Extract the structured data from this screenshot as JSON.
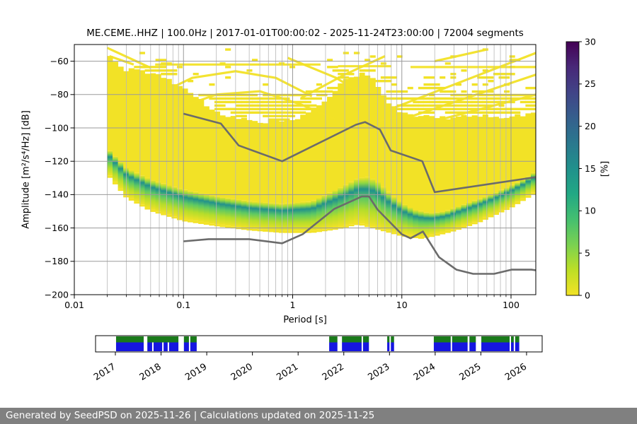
{
  "title": "ME.CEME..HHZ | 100.0Hz | 2017-01-01T00:00:02 - 2025-11-24T23:00:00 | 72004 segments",
  "footer": "Generated by SeedPSD on 2025-11-26 | Calculations updated on 2025-11-25",
  "axes": {
    "xlabel": "Period [s]",
    "ylabel": "Amplitude [m²/s⁴/Hz] [dB]",
    "colorbar_label": "[%]"
  },
  "chart_data": {
    "type": "heatmap",
    "subtype": "ppsd-probability",
    "title": "ME.CEME..HHZ | 100.0Hz | 2017-01-01T00:00:02 - 2025-11-24T23:00:00 | 72004 segments",
    "xlabel": "Period [s]",
    "ylabel": "Amplitude [m²/s⁴/Hz] [dB]",
    "xscale": "log",
    "xlim": [
      0.01,
      170
    ],
    "ylim": [
      -200,
      -50
    ],
    "grid": true,
    "x_ticks": [
      {
        "v": 0.01,
        "label": "0.01"
      },
      {
        "v": 0.1,
        "label": "0.1"
      },
      {
        "v": 1,
        "label": "1"
      },
      {
        "v": 10,
        "label": "10"
      },
      {
        "v": 100,
        "label": "100"
      }
    ],
    "y_ticks": [
      {
        "v": -60,
        "label": "−60"
      },
      {
        "v": -80,
        "label": "−80"
      },
      {
        "v": -100,
        "label": "−100"
      },
      {
        "v": -120,
        "label": "−120"
      },
      {
        "v": -140,
        "label": "−140"
      },
      {
        "v": -160,
        "label": "−160"
      },
      {
        "v": -180,
        "label": "−180"
      },
      {
        "v": -200,
        "label": "−200"
      }
    ],
    "colorbar": {
      "label": "[%]",
      "range": [
        0,
        30
      ],
      "ticks": [
        0,
        5,
        10,
        15,
        20,
        25,
        30
      ],
      "colors_bottom_to_top": [
        "#f2e226",
        "#bddf26",
        "#7ad151",
        "#44bf70",
        "#22a884",
        "#21918c",
        "#2a788e",
        "#355f8d",
        "#414487",
        "#482878",
        "#440154"
      ]
    },
    "colors": {
      "base_yellow": "#f2e226",
      "grid_major": "#9a9a9a",
      "grid_minor": "#b8b8b8",
      "noise_model_line": "#6b6b6b",
      "band_gradient_stops": [
        {
          "t": 0.0,
          "c": "#f2e226"
        },
        {
          "t": 0.12,
          "c": "#90d743"
        },
        {
          "t": 0.25,
          "c": "#21918c"
        },
        {
          "t": 0.45,
          "c": "#5ec962"
        },
        {
          "t": 0.7,
          "c": "#b5dd2b"
        },
        {
          "t": 1.0,
          "c": "#f2e226"
        }
      ]
    },
    "heatmap": {
      "bins": 80,
      "period_range": [
        0.02,
        170
      ],
      "seed": 1234,
      "upper_solid": [
        [
          0.02,
          -57
        ],
        [
          0.024,
          -60
        ],
        [
          0.03,
          -65
        ],
        [
          0.05,
          -67
        ],
        [
          0.08,
          -72
        ],
        [
          0.12,
          -80
        ],
        [
          0.2,
          -90
        ],
        [
          0.3,
          -94
        ],
        [
          0.5,
          -96
        ],
        [
          0.9,
          -96
        ],
        [
          1.5,
          -90
        ],
        [
          2.2,
          -80
        ],
        [
          3,
          -72
        ],
        [
          4,
          -68
        ],
        [
          5,
          -68
        ],
        [
          6,
          -75
        ],
        [
          7.5,
          -85
        ],
        [
          10,
          -91
        ],
        [
          15,
          -93
        ],
        [
          25,
          -94
        ],
        [
          40,
          -92
        ],
        [
          70,
          -93
        ],
        [
          120,
          -93
        ],
        [
          170,
          -91
        ]
      ],
      "band_top": [
        [
          0.02,
          -112
        ],
        [
          0.03,
          -124
        ],
        [
          0.05,
          -131
        ],
        [
          0.1,
          -137
        ],
        [
          0.2,
          -141
        ],
        [
          0.4,
          -144
        ],
        [
          0.8,
          -145.5
        ],
        [
          1.5,
          -144
        ],
        [
          2.5,
          -137
        ],
        [
          4,
          -130
        ],
        [
          5,
          -129.5
        ],
        [
          6,
          -132
        ],
        [
          8,
          -140
        ],
        [
          10,
          -145
        ],
        [
          13,
          -149
        ],
        [
          18,
          -151
        ],
        [
          25,
          -150
        ],
        [
          40,
          -145
        ],
        [
          60,
          -141
        ],
        [
          90,
          -136
        ],
        [
          130,
          -131
        ],
        [
          170,
          -126
        ]
      ],
      "bottom": [
        [
          0.02,
          -128
        ],
        [
          0.03,
          -142
        ],
        [
          0.05,
          -150
        ],
        [
          0.1,
          -156
        ],
        [
          0.2,
          -159
        ],
        [
          0.4,
          -161.5
        ],
        [
          0.8,
          -163
        ],
        [
          1.5,
          -163
        ],
        [
          2.5,
          -161
        ],
        [
          4,
          -158
        ],
        [
          6,
          -161
        ],
        [
          10,
          -165
        ],
        [
          15,
          -166.5
        ],
        [
          20,
          -165
        ],
        [
          30,
          -162
        ],
        [
          50,
          -157
        ],
        [
          100,
          -148
        ],
        [
          170,
          -139
        ]
      ],
      "streaks": [
        [
          [
            0.02,
            -52
          ],
          [
            0.05,
            -64
          ]
        ],
        [
          [
            0.021,
            -57
          ],
          [
            0.035,
            -62
          ]
        ],
        [
          [
            0.055,
            -62
          ],
          [
            1.8,
            -62
          ]
        ],
        [
          [
            2.6,
            -63
          ],
          [
            8,
            -63
          ]
        ],
        [
          [
            12,
            -63.5
          ],
          [
            170,
            -63.5
          ]
        ],
        [
          [
            0.05,
            -82
          ],
          [
            0.12,
            -70
          ],
          [
            0.3,
            -66
          ],
          [
            0.7,
            -70
          ],
          [
            1.5,
            -81
          ]
        ],
        [
          [
            0.06,
            -92
          ],
          [
            0.2,
            -80
          ],
          [
            0.5,
            -78
          ],
          [
            1.2,
            -86
          ],
          [
            2.5,
            -95
          ]
        ],
        [
          [
            0.9,
            -58
          ],
          [
            2.5,
            -70
          ],
          [
            5,
            -82
          ]
        ],
        [
          [
            1.2,
            -82
          ],
          [
            3,
            -68
          ],
          [
            7,
            -57
          ]
        ],
        [
          [
            7,
            -90
          ],
          [
            170,
            -55
          ]
        ],
        [
          [
            10,
            -95
          ],
          [
            170,
            -68
          ]
        ],
        [
          [
            15,
            -98
          ],
          [
            170,
            -80
          ]
        ],
        [
          [
            20,
            -60
          ],
          [
            60,
            -53
          ]
        ],
        [
          [
            3,
            -100
          ],
          [
            10,
            -93
          ]
        ]
      ]
    },
    "noise_models": {
      "nhnm": [
        [
          0.1,
          -91.5
        ],
        [
          0.22,
          -97.4
        ],
        [
          0.32,
          -110.5
        ],
        [
          0.8,
          -120.0
        ],
        [
          3.8,
          -98.1
        ],
        [
          4.6,
          -96.5
        ],
        [
          6.3,
          -101.0
        ],
        [
          7.9,
          -113.5
        ],
        [
          15.4,
          -120.0
        ],
        [
          20.0,
          -138.5
        ],
        [
          170.0,
          -129.5
        ]
      ],
      "nlnm": [
        [
          0.1,
          -168.0
        ],
        [
          0.17,
          -166.7
        ],
        [
          0.4,
          -166.7
        ],
        [
          0.8,
          -169.2
        ],
        [
          1.24,
          -163.7
        ],
        [
          2.4,
          -148.6
        ],
        [
          4.3,
          -141.1
        ],
        [
          5.0,
          -141.1
        ],
        [
          6.0,
          -149.0
        ],
        [
          10.0,
          -163.8
        ],
        [
          12.0,
          -166.2
        ],
        [
          15.6,
          -162.1
        ],
        [
          21.9,
          -177.5
        ],
        [
          31.6,
          -185.0
        ],
        [
          45.0,
          -187.5
        ],
        [
          70.0,
          -187.5
        ],
        [
          101.0,
          -185.0
        ],
        [
          154.0,
          -185.0
        ],
        [
          170.0,
          -185.4
        ]
      ]
    },
    "timeline": {
      "years": [
        2017,
        2018,
        2019,
        2020,
        2021,
        2022,
        2023,
        2024,
        2025,
        2026
      ],
      "green_color": "#1a7a1a",
      "blue_color": "#1616e0",
      "segments": [
        [
          2017.015,
          2017.62
        ],
        [
          2017.7,
          2018.38
        ],
        [
          2018.5,
          2018.61
        ],
        [
          2018.64,
          2018.78
        ],
        [
          2021.68,
          2021.86
        ],
        [
          2021.96,
          2022.39
        ],
        [
          2022.42,
          2022.55
        ],
        [
          2022.95,
          2023.0
        ],
        [
          2023.03,
          2023.1
        ],
        [
          2023.97,
          2024.34
        ],
        [
          2024.37,
          2024.71
        ],
        [
          2024.75,
          2024.89
        ],
        [
          2025.01,
          2025.63
        ],
        [
          2025.66,
          2025.72
        ],
        [
          2025.75,
          2025.84
        ]
      ],
      "blue_only_gaps": [
        2017.82,
        2018.04,
        2018.16
      ]
    }
  }
}
